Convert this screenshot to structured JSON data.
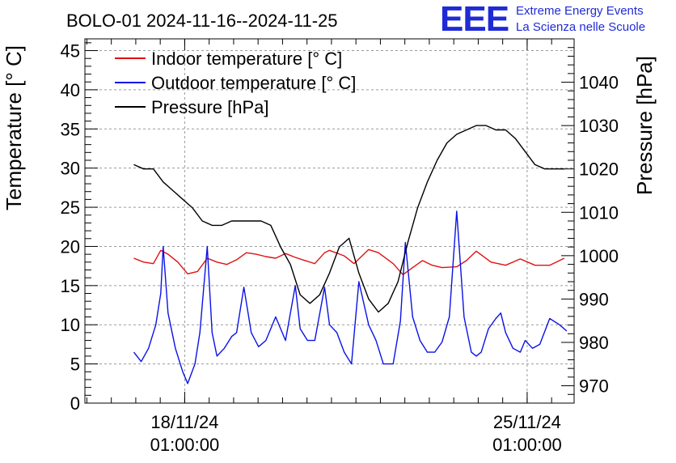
{
  "chart_data": {
    "type": "line",
    "title": "BOLO-01 2024-11-16--2024-11-25",
    "ylabel": "Temperature [° C]",
    "y2label": "Pressure [hPa]",
    "ylim": [
      0,
      46.5
    ],
    "y2lim": [
      966,
      1050
    ],
    "xlim": [
      16.0,
      26.0
    ],
    "yticks": [
      0,
      5,
      10,
      15,
      20,
      25,
      30,
      35,
      40,
      45
    ],
    "y2ticks": [
      970,
      980,
      990,
      1000,
      1010,
      1020,
      1030,
      1040
    ],
    "xticks": [
      {
        "pos": 18.04,
        "label_date": "18/11/24",
        "label_time": "01:00:00"
      },
      {
        "pos": 25.04,
        "label_date": "25/11/24",
        "label_time": "01:00:00"
      }
    ],
    "legend": [
      {
        "name": "Indoor temperature [° C]",
        "color": "#e01010"
      },
      {
        "name": "Outdoor temperature [° C]",
        "color": "#0a12e6"
      },
      {
        "name": "Pressure [hPa]",
        "color": "#000000"
      }
    ],
    "series": [
      {
        "name": "Indoor temperature [° C]",
        "axis": "left",
        "color": "#e01010",
        "x": [
          17.0,
          17.2,
          17.4,
          17.55,
          17.7,
          17.9,
          18.1,
          18.3,
          18.5,
          18.7,
          18.9,
          19.1,
          19.3,
          19.5,
          19.7,
          19.9,
          20.1,
          20.3,
          20.5,
          20.7,
          20.9,
          21.0,
          21.3,
          21.5,
          21.8,
          22.0,
          22.3,
          22.5,
          22.9,
          23.1,
          23.3,
          23.6,
          23.8,
          24.0,
          24.3,
          24.6,
          24.9,
          25.2,
          25.5,
          25.8
        ],
        "values": [
          18.5,
          18.0,
          17.8,
          19.5,
          19.0,
          18.0,
          16.5,
          16.8,
          18.5,
          18.0,
          17.7,
          18.3,
          19.2,
          19.0,
          18.7,
          18.5,
          19.1,
          18.6,
          18.2,
          17.8,
          19.2,
          19.5,
          18.8,
          17.8,
          19.6,
          19.2,
          17.8,
          16.4,
          18.2,
          17.6,
          17.3,
          17.4,
          18.2,
          19.4,
          18.0,
          17.6,
          18.4,
          17.6,
          17.6,
          18.5
        ]
      },
      {
        "name": "Outdoor temperature [° C]",
        "axis": "left",
        "color": "#0a12e6",
        "x": [
          17.0,
          17.15,
          17.3,
          17.45,
          17.55,
          17.6,
          17.7,
          17.85,
          18.0,
          18.1,
          18.25,
          18.35,
          18.5,
          18.6,
          18.7,
          18.85,
          19.0,
          19.1,
          19.25,
          19.4,
          19.55,
          19.7,
          19.9,
          20.1,
          20.3,
          20.4,
          20.55,
          20.7,
          20.9,
          21.0,
          21.15,
          21.3,
          21.45,
          21.6,
          21.8,
          21.95,
          22.1,
          22.3,
          22.45,
          22.55,
          22.7,
          22.85,
          23.0,
          23.15,
          23.3,
          23.45,
          23.6,
          23.75,
          23.9,
          24.0,
          24.1,
          24.25,
          24.4,
          24.5,
          24.6,
          24.75,
          24.9,
          25.0,
          25.15,
          25.3,
          25.5,
          25.7,
          25.85
        ],
        "values": [
          6.5,
          5.3,
          7.0,
          10.0,
          14.0,
          20.0,
          11.5,
          7.0,
          4.0,
          2.5,
          5.0,
          9.0,
          20.0,
          9.0,
          6.0,
          7.0,
          8.5,
          9.0,
          14.8,
          9.0,
          7.2,
          8.0,
          11.0,
          8.0,
          15.0,
          9.5,
          8.0,
          8.0,
          14.8,
          10.0,
          9.0,
          6.5,
          5.0,
          15.5,
          10.0,
          8.0,
          5.0,
          5.0,
          10.5,
          20.5,
          11.0,
          8.0,
          6.5,
          6.5,
          7.8,
          11.0,
          24.5,
          11.0,
          6.5,
          6.0,
          6.5,
          9.5,
          10.8,
          11.5,
          9.0,
          7.0,
          6.5,
          8.0,
          7.0,
          7.5,
          10.8,
          10.0,
          9.2
        ]
      },
      {
        "name": "Pressure [hPa]",
        "axis": "right",
        "color": "#000000",
        "x": [
          17.0,
          17.2,
          17.4,
          17.6,
          17.8,
          18.0,
          18.2,
          18.4,
          18.6,
          18.8,
          19.0,
          19.2,
          19.4,
          19.6,
          19.8,
          20.0,
          20.2,
          20.4,
          20.6,
          20.8,
          21.0,
          21.2,
          21.4,
          21.6,
          21.8,
          22.0,
          22.2,
          22.4,
          22.6,
          22.8,
          23.0,
          23.2,
          23.4,
          23.6,
          23.8,
          24.0,
          24.2,
          24.4,
          24.6,
          24.8,
          25.0,
          25.2,
          25.4,
          25.6,
          25.8
        ],
        "values": [
          1021,
          1020,
          1020,
          1017,
          1015,
          1013,
          1011,
          1008,
          1007,
          1007,
          1008,
          1008,
          1008,
          1008,
          1007,
          1002,
          998,
          991,
          989,
          991,
          996,
          1002,
          1004,
          996,
          990,
          987,
          989,
          994,
          1003,
          1011,
          1017,
          1022,
          1026,
          1028,
          1029,
          1030,
          1030,
          1029,
          1029,
          1027,
          1024,
          1021,
          1020,
          1020,
          1020
        ]
      }
    ]
  },
  "logo": {
    "mark": "EEE",
    "line1": "Extreme Energy Events",
    "line2": "La Scienza nelle Scuole"
  }
}
